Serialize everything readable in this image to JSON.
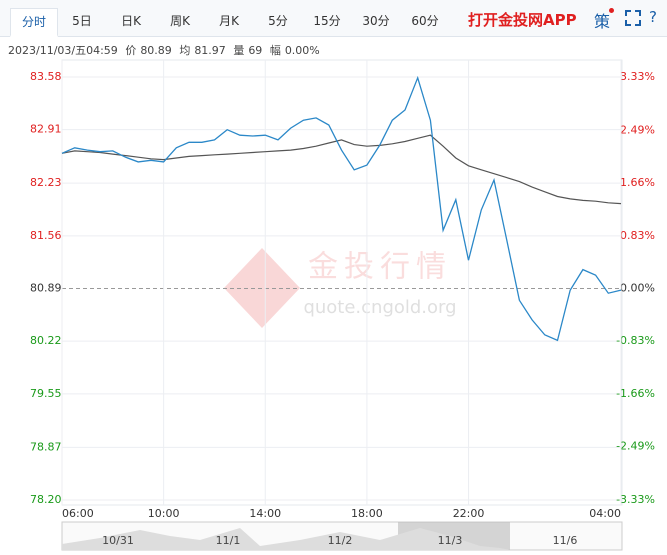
{
  "tabs": [
    "分时",
    "5日",
    "日K",
    "周K",
    "月K",
    "5分",
    "15分",
    "30分",
    "60分"
  ],
  "app_link": "打开金投网APP",
  "strategy": "策",
  "help": "?",
  "info": {
    "time": "2023/11/03/五04:59",
    "price_label": "价",
    "price": "80.89",
    "avg_label": "均",
    "avg": "81.97",
    "vol_label": "量",
    "vol": "69",
    "amp_label": "幅",
    "amp": "0.00%"
  },
  "watermark": {
    "name": "金投行情",
    "url": "quote.cngold.org"
  },
  "navigator": {
    "labels": [
      "10/31",
      "11/1",
      "11/2",
      "11/3",
      "11/6"
    ]
  },
  "chart_data": {
    "type": "line",
    "x": [
      "06:00",
      "06:30",
      "07:00",
      "07:30",
      "08:00",
      "08:30",
      "09:00",
      "09:30",
      "10:00",
      "10:30",
      "11:00",
      "11:30",
      "12:00",
      "12:30",
      "13:00",
      "13:30",
      "14:00",
      "14:30",
      "15:00",
      "15:30",
      "16:00",
      "16:30",
      "17:00",
      "17:30",
      "18:00",
      "18:30",
      "19:00",
      "19:30",
      "20:00",
      "20:30",
      "21:00",
      "21:30",
      "22:00",
      "22:30",
      "23:00",
      "23:30",
      "00:00",
      "00:30",
      "01:00",
      "01:30",
      "02:00",
      "02:30",
      "03:00",
      "03:30",
      "04:00"
    ],
    "series": [
      {
        "name": "价",
        "color": "#2b88c8",
        "values": [
          82.61,
          82.68,
          82.65,
          82.63,
          82.64,
          82.56,
          82.5,
          82.52,
          82.5,
          82.68,
          82.75,
          82.75,
          82.78,
          82.91,
          82.84,
          82.83,
          82.84,
          82.78,
          82.93,
          83.03,
          83.06,
          82.97,
          82.65,
          82.4,
          82.46,
          82.71,
          83.03,
          83.16,
          83.57,
          83.03,
          81.63,
          82.02,
          81.25,
          81.89,
          82.27,
          81.51,
          80.74,
          80.49,
          80.3,
          80.23,
          80.87,
          81.13,
          81.06,
          80.83,
          80.87
        ]
      },
      {
        "name": "均",
        "color": "#555555",
        "values": [
          82.61,
          82.64,
          82.63,
          82.62,
          82.6,
          82.58,
          82.56,
          82.54,
          82.53,
          82.55,
          82.57,
          82.58,
          82.59,
          82.6,
          82.61,
          82.62,
          82.63,
          82.64,
          82.65,
          82.67,
          82.7,
          82.74,
          82.78,
          82.72,
          82.7,
          82.71,
          82.73,
          82.76,
          82.8,
          82.84,
          82.7,
          82.55,
          82.45,
          82.4,
          82.35,
          82.3,
          82.25,
          82.18,
          82.12,
          82.06,
          82.03,
          82.01,
          82,
          81.98,
          81.97
        ]
      }
    ],
    "xlim": [
      "06:00",
      "04:00"
    ],
    "xticks": [
      "06:00",
      "10:00",
      "14:00",
      "18:00",
      "22:00",
      "04:00"
    ],
    "ylim": [
      78.2,
      83.58
    ],
    "yticks": [
      {
        "value": 78.2,
        "label": "78.20"
      },
      78.87,
      79.55,
      80.22,
      80.89,
      81.56,
      82.23,
      82.91,
      83.58
    ],
    "y2lim": [
      -3.33,
      3.33
    ],
    "y2ticks": [
      {
        "value": -3.33,
        "label": "-3.33%"
      },
      {
        "value": -2.49,
        "label": "-2.49%"
      },
      {
        "value": -1.66,
        "label": "-1.66%"
      },
      {
        "value": -0.83,
        "label": "-0.83%"
      },
      {
        "value": 0,
        "label": "0.00%"
      },
      {
        "value": 0.83,
        "label": "0.83%"
      },
      {
        "value": 1.66,
        "label": "1.66%"
      },
      {
        "value": 2.49,
        "label": "2.49%"
      },
      {
        "value": 3.33,
        "label": "3.33%"
      }
    ],
    "base": 80.89,
    "up_color": "#e02020",
    "down_color": "#1a9a1a",
    "flat_color": "#333333",
    "grid": true
  }
}
